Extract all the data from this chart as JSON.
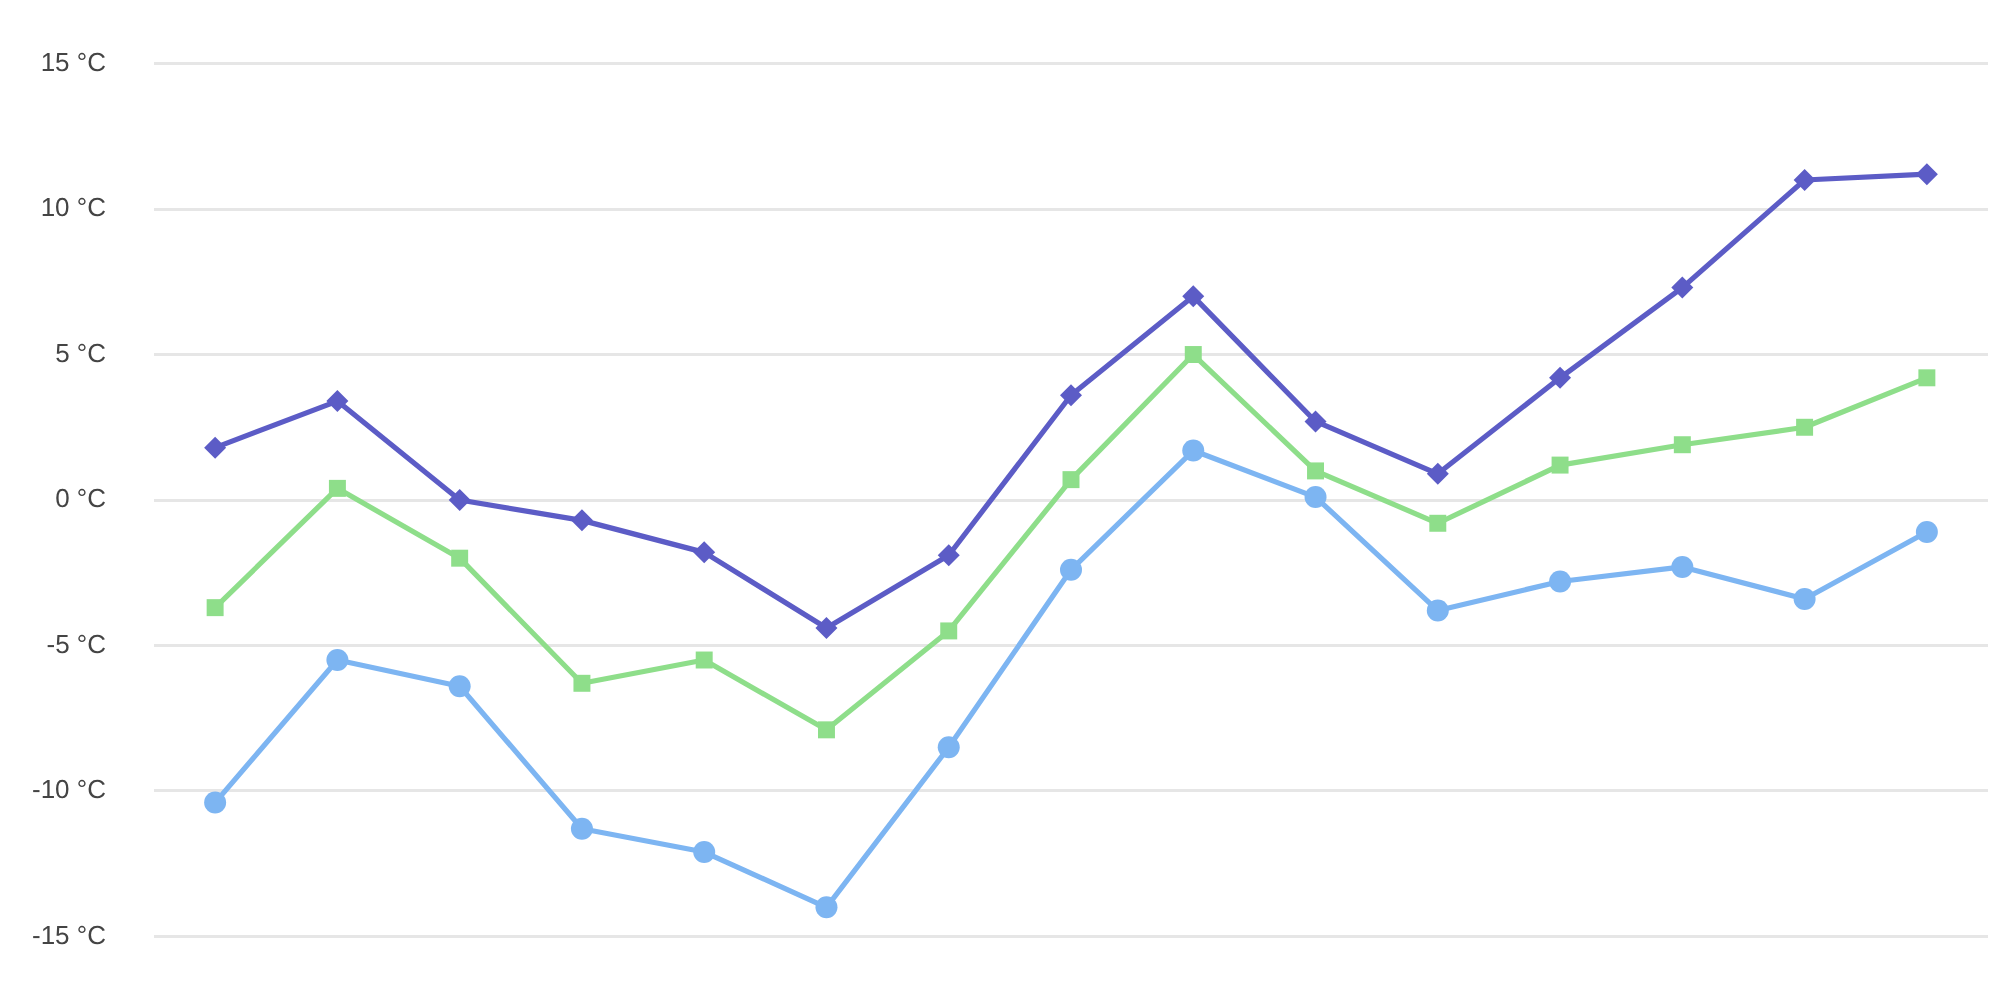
{
  "chart_data": {
    "type": "line",
    "categories": [
      null,
      null,
      null,
      null,
      null,
      null,
      null,
      null,
      null,
      null,
      null,
      null,
      null,
      null,
      null
    ],
    "series": [
      {
        "color": "#5c5cc6",
        "marker": "diamond",
        "values": [
          1.8,
          3.4,
          0,
          -0.7,
          -1.8,
          -4.4,
          -1.9,
          3.6,
          7.0,
          2.7,
          0.9,
          4.2,
          7.3,
          11.0,
          11.2
        ]
      },
      {
        "color": "#8ede8a",
        "marker": "square",
        "values": [
          -3.7,
          0.4,
          -2.0,
          -6.3,
          -5.5,
          -7.9,
          -4.5,
          0.7,
          5.0,
          1.0,
          -0.8,
          1.2,
          1.9,
          2.5,
          4.2
        ]
      },
      {
        "color": "#7db5f2",
        "marker": "circle",
        "values": [
          -10.4,
          -5.5,
          -6.4,
          -11.3,
          -12.1,
          -14.0,
          -8.5,
          -2.4,
          1.7,
          0.1,
          -3.8,
          -2.8,
          -2.3,
          -3.4,
          -1.1
        ]
      }
    ],
    "ylim": [
      -15,
      15
    ],
    "yticks": [
      {
        "value": -15,
        "label": "-15 °C"
      },
      {
        "value": -10,
        "label": "-10 °C"
      },
      {
        "value": -5,
        "label": "-5 °C"
      },
      {
        "value": 0,
        "label": "0 °C"
      },
      {
        "value": 5,
        "label": "5 °C"
      },
      {
        "value": 10,
        "label": "10 °C"
      },
      {
        "value": 15,
        "label": "15 °C"
      }
    ],
    "grid": "y",
    "legend": false,
    "tick_labels": "y",
    "line_style": "solid"
  }
}
